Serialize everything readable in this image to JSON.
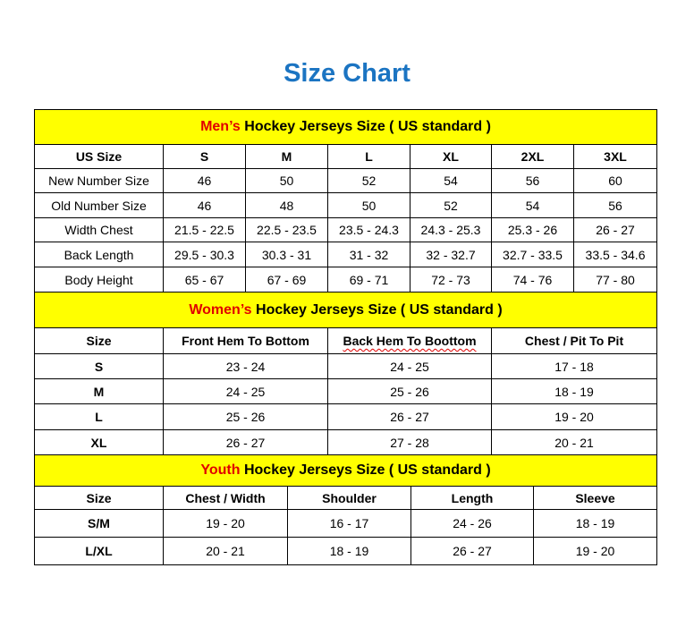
{
  "title": "Size Chart",
  "colors": {
    "title": "#1b74c2",
    "banner": "#ffff00",
    "accent": "#e00000"
  },
  "men": {
    "banner_accent": "Men’s",
    "banner_rest": " Hockey Jerseys Size ( US standard )",
    "headers": [
      "US Size",
      "S",
      "M",
      "L",
      "XL",
      "2XL",
      "3XL"
    ],
    "rows": [
      [
        "New Number Size",
        "46",
        "50",
        "52",
        "54",
        "56",
        "60"
      ],
      [
        "Old Number Size",
        "46",
        "48",
        "50",
        "52",
        "54",
        "56"
      ],
      [
        "Width Chest",
        "21.5 - 22.5",
        "22.5 - 23.5",
        "23.5 - 24.3",
        "24.3 - 25.3",
        "25.3 - 26",
        "26 - 27"
      ],
      [
        "Back Length",
        "29.5 - 30.3",
        "30.3 - 31",
        "31 - 32",
        "32 - 32.7",
        "32.7 - 33.5",
        "33.5 - 34.6"
      ],
      [
        "Body Height",
        "65 - 67",
        "67 - 69",
        "69 - 71",
        "72 - 73",
        "74 - 76",
        "77 - 80"
      ]
    ]
  },
  "women": {
    "banner_accent": "Women’s",
    "banner_rest": " Hockey Jerseys Size ( US standard )",
    "headers": [
      "Size",
      "Front Hem To Bottom",
      "Back Hem To Boottom",
      "Chest / Pit To Pit"
    ],
    "rows": [
      [
        "S",
        "23 - 24",
        "24 - 25",
        "17 - 18"
      ],
      [
        "M",
        "24 - 25",
        "25 - 26",
        "18 - 19"
      ],
      [
        "L",
        "25 - 26",
        "26 - 27",
        "19 - 20"
      ],
      [
        "XL",
        "26 - 27",
        "27 - 28",
        "20 - 21"
      ]
    ]
  },
  "youth": {
    "banner_accent": "Youth",
    "banner_rest": " Hockey Jerseys Size ( US standard )",
    "headers": [
      "Size",
      "Chest / Width",
      "Shoulder",
      "Length",
      "Sleeve"
    ],
    "rows": [
      [
        "S/M",
        "19 - 20",
        "16 - 17",
        "24 - 26",
        "18 - 19"
      ],
      [
        "L/XL",
        "20 - 21",
        "18 - 19",
        "26 - 27",
        "19 - 20"
      ]
    ]
  }
}
